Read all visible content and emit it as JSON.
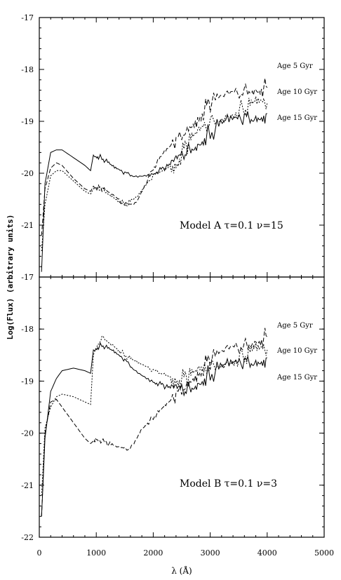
{
  "chart_data": [
    {
      "type": "line",
      "panel": "top",
      "annotation": "Model A  τ=0.1  ν=15",
      "xlim": [
        0,
        5000
      ],
      "ylim": [
        -22,
        -17
      ],
      "y_ticks": [
        -17,
        -18,
        -19,
        -20,
        -21
      ],
      "y_tick_labels": [
        "-17",
        "-18",
        "-19",
        "-20",
        "-21"
      ],
      "series": [
        {
          "name": "Age  5 Gyr",
          "dash": "6,3",
          "x": [
            40,
            100,
            200,
            300,
            400,
            600,
            800,
            900,
            950,
            1100,
            1300,
            1500,
            1700,
            2000,
            2200,
            2400,
            2600,
            2800,
            3000,
            3300,
            3600,
            3800,
            4000
          ],
          "y": [
            -21.2,
            -20.3,
            -19.9,
            -19.8,
            -19.85,
            -20.1,
            -20.3,
            -20.35,
            -20.25,
            -20.3,
            -20.45,
            -20.6,
            -20.55,
            -19.9,
            -19.6,
            -19.4,
            -19.1,
            -18.9,
            -18.65,
            -18.55,
            -18.4,
            -18.35,
            -18.35
          ]
        },
        {
          "name": "Age 10 Gyr",
          "dash": "2,2",
          "x": [
            40,
            100,
            200,
            300,
            400,
            600,
            800,
            900,
            950,
            1100,
            1300,
            1500,
            1700,
            2000,
            2200,
            2400,
            2600,
            2800,
            3000,
            3300,
            3600,
            3800,
            4000
          ],
          "y": [
            -21.5,
            -20.6,
            -20.05,
            -19.95,
            -19.95,
            -20.15,
            -20.35,
            -20.4,
            -20.3,
            -20.3,
            -20.45,
            -20.6,
            -20.5,
            -20.05,
            -19.9,
            -19.8,
            -19.45,
            -19.25,
            -19.0,
            -18.85,
            -18.75,
            -18.7,
            -18.65
          ]
        },
        {
          "name": "Age 15 Gyr",
          "dash": "",
          "x": [
            40,
            100,
            200,
            300,
            400,
            600,
            800,
            900,
            950,
            1100,
            1300,
            1500,
            1700,
            2000,
            2200,
            2400,
            2600,
            2800,
            3000,
            3300,
            3600,
            3800,
            4000
          ],
          "y": [
            -21.9,
            -20.2,
            -19.6,
            -19.55,
            -19.55,
            -19.7,
            -19.85,
            -19.95,
            -19.65,
            -19.7,
            -19.9,
            -20.0,
            -20.05,
            -20.0,
            -19.9,
            -19.8,
            -19.55,
            -19.4,
            -19.2,
            -19.05,
            -18.95,
            -18.9,
            -18.85
          ]
        }
      ]
    },
    {
      "type": "line",
      "panel": "bottom",
      "annotation": "Model B  τ=0.1  ν=3",
      "xlim": [
        0,
        5000
      ],
      "ylim": [
        -22,
        -17
      ],
      "x_ticks": [
        0,
        1000,
        2000,
        3000,
        4000,
        5000
      ],
      "x_tick_labels": [
        "0",
        "1000",
        "2000",
        "3000",
        "4000",
        "5000"
      ],
      "y_ticks": [
        -17,
        -18,
        -19,
        -20,
        -21,
        -22
      ],
      "y_tick_labels": [
        "-17",
        "-18",
        "-19",
        "-20",
        "-21",
        "-22"
      ],
      "series": [
        {
          "name": "Age  5 Gyr",
          "dash": "6,3",
          "x": [
            40,
            100,
            200,
            300,
            400,
            600,
            800,
            900,
            1000,
            1200,
            1400,
            1600,
            1800,
            2000,
            2200,
            2400,
            2600,
            2800,
            3000,
            3300,
            3600,
            3800,
            4000
          ],
          "y": [
            -21.6,
            -20.0,
            -19.4,
            -19.35,
            -19.5,
            -19.8,
            -20.1,
            -20.2,
            -20.1,
            -20.2,
            -20.3,
            -20.3,
            -19.9,
            -19.7,
            -19.5,
            -19.3,
            -19.0,
            -18.8,
            -18.6,
            -18.45,
            -18.3,
            -18.2,
            -18.15
          ]
        },
        {
          "name": "Age 10 Gyr",
          "dash": "2,2",
          "x": [
            40,
            100,
            200,
            300,
            400,
            600,
            800,
            900,
            950,
            1100,
            1300,
            1500,
            1700,
            2000,
            2200,
            2400,
            2600,
            2800,
            3000,
            3300,
            3600,
            3800,
            4000
          ],
          "y": [
            -21.2,
            -19.9,
            -19.5,
            -19.3,
            -19.25,
            -19.3,
            -19.4,
            -19.45,
            -18.5,
            -18.15,
            -18.3,
            -18.5,
            -18.65,
            -18.8,
            -18.85,
            -18.95,
            -18.95,
            -18.85,
            -18.7,
            -18.6,
            -18.5,
            -18.45,
            -18.4
          ]
        },
        {
          "name": "Age 15 Gyr",
          "dash": "",
          "x": [
            40,
            100,
            200,
            300,
            400,
            600,
            800,
            900,
            950,
            1100,
            1300,
            1500,
            1700,
            2000,
            2200,
            2400,
            2600,
            2800,
            3000,
            3300,
            3600,
            3800,
            4000
          ],
          "y": [
            -21.6,
            -20.1,
            -19.2,
            -18.95,
            -18.8,
            -18.75,
            -18.8,
            -18.85,
            -18.4,
            -18.3,
            -18.45,
            -18.6,
            -18.8,
            -19.0,
            -19.1,
            -19.2,
            -19.15,
            -19.0,
            -18.85,
            -18.75,
            -18.65,
            -18.6,
            -18.55
          ]
        }
      ]
    }
  ],
  "axes": {
    "ylabel": "Log(Flux) (arbitrary units)",
    "xlabel": "λ (Å)"
  }
}
